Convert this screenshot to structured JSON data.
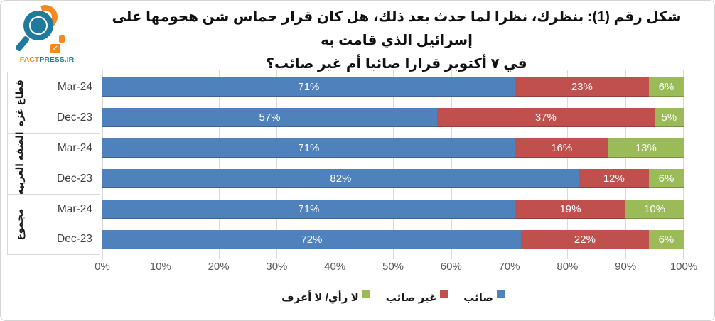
{
  "brand": {
    "fact": "FACT",
    "press": "PRESS.IR",
    "check": "✓",
    "teal": "#1F7A9D",
    "orange": "#F18B21"
  },
  "title": {
    "line1": "شكل رقم (1): بنظرك، نظرا لما حدث بعد ذلك، هل كان قرار حماس شن هجومها على إسرائيل الذي قامت به",
    "line2": "في ٧ أكتوبر قرارا صائبا أم غير صائب؟"
  },
  "chart_data": {
    "type": "bar",
    "orientation": "horizontal",
    "stacked": true,
    "title": "شكل رقم (1): بنظرك، نظرا لما حدث بعد ذلك، هل كان قرار حماس شن هجومها على إسرائيل الذي قامت به في ٧ أكتوبر قرارا صائبا أم غير صائب؟",
    "xlabel": "",
    "ylabel": "",
    "xlim": [
      0,
      100
    ],
    "grid": true,
    "legend_position": "bottom",
    "x_ticks": [
      "0%",
      "10%",
      "20%",
      "30%",
      "40%",
      "50%",
      "60%",
      "70%",
      "80%",
      "90%",
      "100%"
    ],
    "series": [
      {
        "name": "صائب",
        "color": "#4F81BD",
        "values": [
          71,
          57,
          71,
          82,
          71,
          72
        ]
      },
      {
        "name": "غير صائب",
        "color": "#C0504D",
        "values": [
          23,
          37,
          16,
          12,
          19,
          22
        ]
      },
      {
        "name": "لا رأي/ لا أعرف",
        "color": "#9BBB59",
        "values": [
          6,
          5,
          13,
          6,
          10,
          6
        ]
      }
    ],
    "categories": [
      "Mar-24",
      "Dec-23",
      "Mar-24",
      "Dec-23",
      "Mar-24",
      "Dec-23"
    ],
    "groups": [
      {
        "label": "قطاع غزة",
        "rows": [
          {
            "period": "Mar-24",
            "values": [
              71,
              23,
              6
            ],
            "labels": [
              "71%",
              "23%",
              "6%"
            ]
          },
          {
            "period": "Dec-23",
            "values": [
              57,
              37,
              5
            ],
            "labels": [
              "57%",
              "37%",
              "5%"
            ]
          }
        ]
      },
      {
        "label": "الضفة الغربية",
        "rows": [
          {
            "period": "Mar-24",
            "values": [
              71,
              16,
              13
            ],
            "labels": [
              "71%",
              "16%",
              "13%"
            ]
          },
          {
            "period": "Dec-23",
            "values": [
              82,
              12,
              6
            ],
            "labels": [
              "82%",
              "12%",
              "6%"
            ]
          }
        ]
      },
      {
        "label": "مجموع",
        "rows": [
          {
            "period": "Mar-24",
            "values": [
              71,
              19,
              10
            ],
            "labels": [
              "71%",
              "19%",
              "10%"
            ]
          },
          {
            "period": "Dec-23",
            "values": [
              72,
              22,
              6
            ],
            "labels": [
              "72%",
              "22%",
              "6%"
            ]
          }
        ]
      }
    ],
    "legend": [
      {
        "label": "صائب",
        "color": "#4F81BD"
      },
      {
        "label": "غير صائب",
        "color": "#C0504D"
      },
      {
        "label": "لا رأي/ لا أعرف",
        "color": "#9BBB59"
      }
    ]
  }
}
